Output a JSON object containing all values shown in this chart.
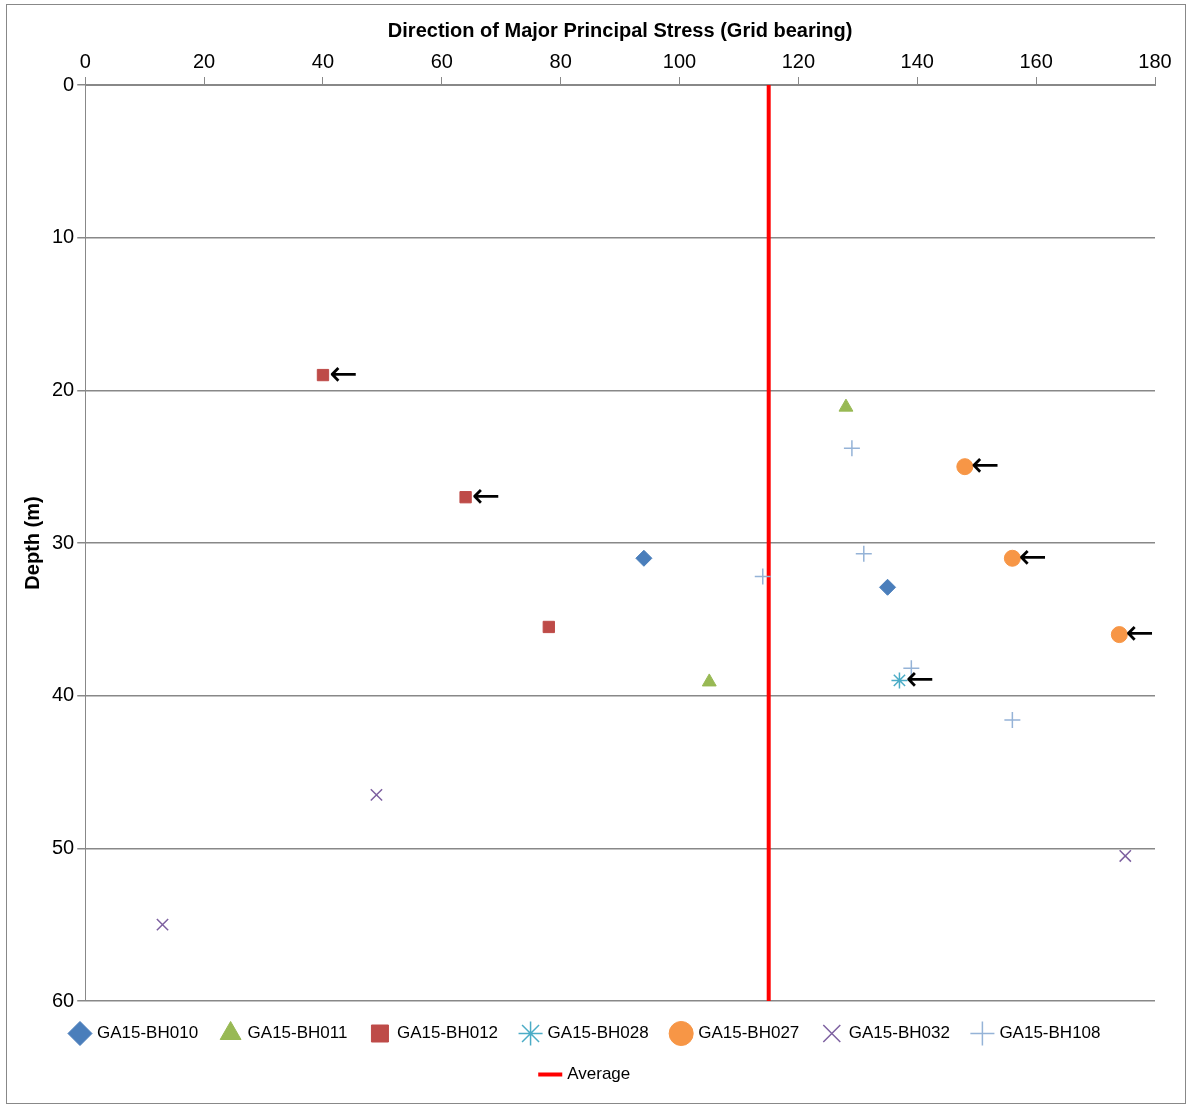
{
  "chart_data": {
    "type": "scatter",
    "xlabel": "Direction of Major Principal Stress (Grid bearing)",
    "ylabel": "Depth (m)",
    "xlim": [
      0,
      180
    ],
    "xticks": [
      0,
      20,
      40,
      60,
      80,
      100,
      120,
      140,
      160,
      180
    ],
    "ylim": [
      60,
      0
    ],
    "yticks": [
      0,
      10,
      20,
      30,
      40,
      50,
      60
    ],
    "grid": "y",
    "legend": "bottom",
    "series": [
      {
        "name": "GA15-BH010",
        "color": "#4a7ebb",
        "marker": "diamond",
        "x": [
          94,
          135
        ],
        "values": [
          31,
          32.9
        ]
      },
      {
        "name": "GA15-BH011",
        "color": "#98b954",
        "marker": "triangle",
        "x": [
          128,
          105
        ],
        "values": [
          21.1,
          39.1
        ]
      },
      {
        "name": "GA15-BH012",
        "color": "#be4b48",
        "marker": "square",
        "x": [
          40,
          64,
          78
        ],
        "values": [
          19,
          27,
          35.5
        ]
      },
      {
        "name": "GA15-BH028",
        "color": "#4bacc6",
        "marker": "cross",
        "x": [
          137
        ],
        "values": [
          39
        ]
      },
      {
        "name": "GA15-BH027",
        "color": "#f79646",
        "marker": "circle",
        "x": [
          148,
          156,
          174
        ],
        "values": [
          25,
          31,
          36
        ]
      },
      {
        "name": "GA15-BH032",
        "color": "#7d60a0",
        "marker": "x",
        "x": [
          49,
          13,
          175
        ],
        "values": [
          46.5,
          55,
          50.5
        ]
      },
      {
        "name": "GA15-BH108",
        "color": "#95b3d7",
        "marker": "plus",
        "x": [
          129,
          131,
          114,
          139,
          156
        ],
        "values": [
          23.8,
          30.7,
          32.2,
          38.2,
          41.6
        ]
      },
      {
        "name": "Average",
        "type": "line",
        "color": "#ff0000",
        "marker": "none",
        "x": [
          115,
          115
        ],
        "values": [
          0,
          60
        ]
      }
    ],
    "annotations": [
      {
        "text": "←",
        "x": 40,
        "y": 19
      },
      {
        "text": "←",
        "x": 64,
        "y": 27
      },
      {
        "text": "←",
        "x": 148,
        "y": 25
      },
      {
        "text": "←",
        "x": 156,
        "y": 31
      },
      {
        "text": "←",
        "x": 174,
        "y": 36
      },
      {
        "text": "←",
        "x": 137,
        "y": 39
      }
    ]
  }
}
